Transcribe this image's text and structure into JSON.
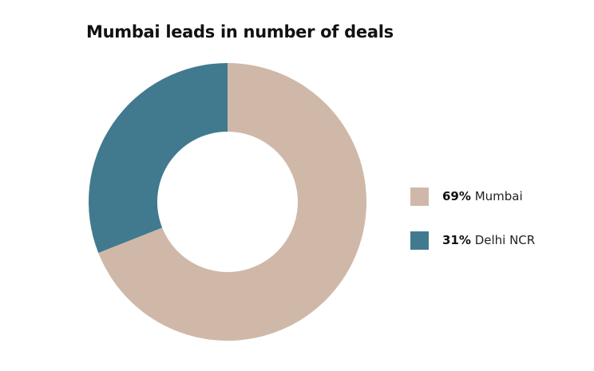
{
  "chart_data": {
    "type": "pie",
    "title": "Mumbai leads in number of deals",
    "categories": [
      "Mumbai",
      "Delhi NCR"
    ],
    "values": [
      69,
      31
    ],
    "unit": "%",
    "colors": [
      "#d0b8a8",
      "#417a8f"
    ],
    "legend": [
      {
        "percent_label": "69%",
        "name": "Mumbai"
      },
      {
        "percent_label": "31%",
        "name": "Delhi NCR"
      }
    ],
    "legend_position": "right",
    "style": "donut"
  }
}
